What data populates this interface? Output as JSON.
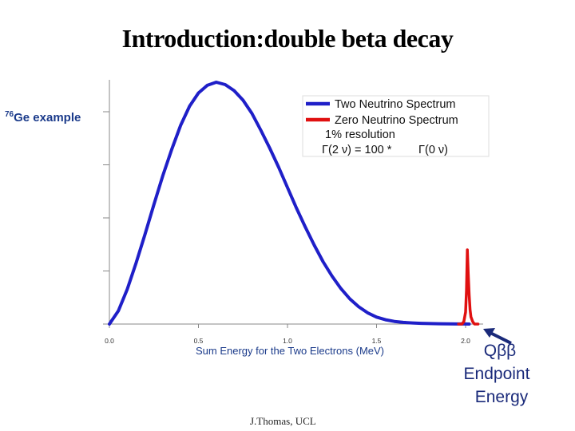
{
  "slide": {
    "title": "Introduction:double beta decay",
    "example_prefix": "76",
    "example_label": "Ge example",
    "annotation_q": "Qββ",
    "annotation_line1": "Endpoint",
    "annotation_line2": "Energy",
    "footer": "J.Thomas, UCL"
  },
  "chart_data": {
    "type": "line",
    "title": "",
    "xlabel": "Sum Energy for the Two Electrons (MeV)",
    "ylabel": "",
    "xlim": [
      0.0,
      2.2
    ],
    "ylim": [
      0,
      1.02
    ],
    "x_ticks": [
      "0.0",
      "0.5",
      "1.0",
      "1.5",
      "2.0"
    ],
    "x_tick_values": [
      0.0,
      0.5,
      1.0,
      1.5,
      2.0
    ],
    "y_ticks_unlabeled": 5,
    "series": [
      {
        "name": "Two Neutrino Spectrum",
        "color": "#1f1fc8",
        "x": [
          0.0,
          0.05,
          0.1,
          0.15,
          0.2,
          0.25,
          0.3,
          0.35,
          0.4,
          0.45,
          0.5,
          0.55,
          0.6,
          0.65,
          0.7,
          0.75,
          0.8,
          0.85,
          0.9,
          0.95,
          1.0,
          1.05,
          1.1,
          1.15,
          1.2,
          1.25,
          1.3,
          1.35,
          1.4,
          1.45,
          1.5,
          1.55,
          1.6,
          1.65,
          1.7,
          1.75,
          1.8,
          1.85,
          1.9,
          1.95,
          2.0,
          2.02
        ],
        "y": [
          0.0,
          0.055,
          0.145,
          0.255,
          0.375,
          0.5,
          0.62,
          0.73,
          0.83,
          0.91,
          0.965,
          0.997,
          1.01,
          1.0,
          0.975,
          0.935,
          0.88,
          0.81,
          0.735,
          0.655,
          0.57,
          0.485,
          0.405,
          0.33,
          0.26,
          0.2,
          0.148,
          0.105,
          0.072,
          0.047,
          0.029,
          0.018,
          0.011,
          0.007,
          0.0045,
          0.003,
          0.002,
          0.0012,
          0.0007,
          0.0004,
          0.0002,
          0.0
        ]
      },
      {
        "name": "Zero Neutrino Spectrum",
        "color": "#e01010",
        "x": [
          1.96,
          1.98,
          1.99,
          2.0,
          2.005,
          2.01,
          2.015,
          2.02,
          2.025,
          2.03,
          2.04,
          2.05,
          2.07
        ],
        "y": [
          0.0,
          0.0,
          0.01,
          0.05,
          0.14,
          0.31,
          0.21,
          0.12,
          0.06,
          0.03,
          0.01,
          0.0,
          0.0
        ]
      }
    ],
    "legend": {
      "position": "top-right",
      "entries": [
        "Two Neutrino Spectrum",
        "Zero Neutrino Spectrum"
      ],
      "note_line1": "1% resolution",
      "note_line2_left": "Γ(2 ν) = 100 *",
      "note_line2_right": "Γ(0 ν)"
    }
  }
}
